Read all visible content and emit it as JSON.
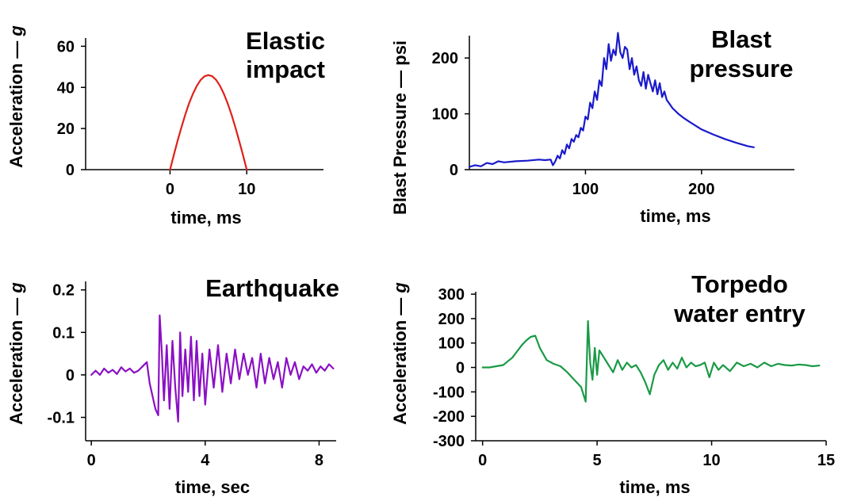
{
  "chart_data": [
    {
      "id": "elastic",
      "type": "line",
      "title_lines": [
        "Elastic",
        "impact"
      ],
      "xlabel": "time, ms",
      "ylabel": "Acceleration —",
      "ylabel_unit": "g",
      "xlim": [
        -11,
        20
      ],
      "ylim": [
        0,
        64
      ],
      "xticks": [
        0,
        10
      ],
      "yticks": [
        0,
        20,
        40,
        60
      ],
      "color": "#e0201b",
      "series": [
        {
          "x": [
            0,
            0.5,
            1,
            1.5,
            2,
            2.5,
            3,
            3.5,
            4,
            4.5,
            5,
            5.5,
            6,
            6.5,
            7,
            7.5,
            8,
            8.5,
            9,
            9.5,
            10
          ],
          "values": [
            0,
            7.2,
            14.2,
            20.8,
            26.9,
            32.4,
            37.0,
            40.8,
            43.7,
            45.4,
            46.0,
            45.4,
            43.7,
            40.8,
            37.0,
            32.4,
            26.9,
            20.8,
            14.2,
            7.2,
            0
          ]
        }
      ]
    },
    {
      "id": "blast",
      "type": "line",
      "title_lines": [
        "Blast",
        "pressure"
      ],
      "xlabel": "time, ms",
      "ylabel": "Blast Pressure — psi",
      "xlim": [
        0,
        280
      ],
      "ylim": [
        0,
        240
      ],
      "xticks": [
        100,
        200
      ],
      "yticks": [
        0,
        100,
        200
      ],
      "color": "#1a1acc",
      "series": [
        {
          "x": [
            0,
            5,
            10,
            15,
            20,
            25,
            30,
            40,
            50,
            60,
            65,
            70,
            72,
            74,
            76,
            78,
            80,
            82,
            84,
            86,
            88,
            90,
            92,
            94,
            96,
            98,
            100,
            102,
            104,
            106,
            108,
            110,
            112,
            114,
            116,
            118,
            120,
            122,
            124,
            126,
            128,
            130,
            132,
            134,
            136,
            138,
            140,
            142,
            144,
            146,
            148,
            150,
            152,
            154,
            156,
            158,
            160,
            162,
            164,
            166,
            168,
            170,
            175,
            180,
            185,
            190,
            200,
            210,
            220,
            230,
            240,
            245
          ],
          "values": [
            5,
            8,
            6,
            12,
            10,
            15,
            13,
            15,
            16,
            18,
            17,
            18,
            8,
            15,
            25,
            20,
            35,
            28,
            45,
            38,
            55,
            50,
            62,
            58,
            75,
            70,
            95,
            90,
            120,
            110,
            140,
            125,
            160,
            150,
            200,
            180,
            225,
            195,
            215,
            205,
            245,
            210,
            200,
            220,
            215,
            180,
            200,
            170,
            185,
            160,
            150,
            175,
            145,
            170,
            155,
            140,
            160,
            135,
            155,
            130,
            140,
            125,
            110,
            100,
            92,
            85,
            72,
            63,
            55,
            48,
            42,
            40
          ]
        }
      ]
    },
    {
      "id": "earthquake",
      "type": "line",
      "title_lines": [
        "Earthquake"
      ],
      "xlabel": "time, sec",
      "ylabel": "Acceleration —",
      "ylabel_unit": "g",
      "xlim": [
        -0.2,
        8.6
      ],
      "ylim": [
        -0.155,
        0.22
      ],
      "xticks": [
        0,
        4,
        8
      ],
      "yticks": [
        -0.1,
        0,
        0.1,
        0.2
      ],
      "color": "#8b0fc4",
      "series": [
        {
          "x": [
            0.0,
            0.15,
            0.3,
            0.45,
            0.6,
            0.75,
            0.9,
            1.05,
            1.2,
            1.35,
            1.5,
            1.65,
            1.8,
            1.95,
            2.05,
            2.15,
            2.25,
            2.35,
            2.4,
            2.48,
            2.55,
            2.65,
            2.75,
            2.85,
            2.95,
            3.05,
            3.12,
            3.2,
            3.3,
            3.4,
            3.5,
            3.6,
            3.7,
            3.8,
            3.9,
            4.0,
            4.15,
            4.3,
            4.45,
            4.6,
            4.75,
            4.9,
            5.05,
            5.2,
            5.35,
            5.5,
            5.65,
            5.8,
            5.95,
            6.1,
            6.25,
            6.4,
            6.55,
            6.7,
            6.85,
            7.0,
            7.15,
            7.3,
            7.45,
            7.6,
            7.75,
            7.9,
            8.05,
            8.2,
            8.35,
            8.5
          ],
          "values": [
            0.0,
            0.01,
            0.0,
            0.015,
            0.005,
            0.012,
            0.002,
            0.018,
            0.008,
            0.015,
            0.005,
            0.01,
            0.02,
            0.03,
            -0.02,
            -0.05,
            -0.08,
            -0.095,
            0.14,
            0.05,
            -0.06,
            0.07,
            -0.08,
            0.08,
            -0.03,
            -0.11,
            0.1,
            -0.05,
            0.06,
            -0.04,
            0.09,
            -0.06,
            0.08,
            -0.05,
            0.05,
            -0.07,
            0.06,
            -0.03,
            0.07,
            -0.04,
            0.05,
            -0.02,
            0.06,
            -0.01,
            0.05,
            0.0,
            0.04,
            -0.03,
            0.05,
            -0.02,
            0.04,
            -0.01,
            0.03,
            -0.03,
            0.04,
            0.0,
            0.03,
            -0.01,
            0.02,
            0.01,
            0.025,
            0.005,
            0.02,
            0.01,
            0.025,
            0.015
          ]
        }
      ]
    },
    {
      "id": "torpedo",
      "type": "line",
      "title_lines": [
        "Torpedo",
        "water entry"
      ],
      "xlabel": "time, ms",
      "ylabel": "Acceleration —",
      "ylabel_unit": "g",
      "xlim": [
        -0.3,
        15
      ],
      "ylim": [
        -300,
        310
      ],
      "xticks": [
        0,
        5,
        10,
        15
      ],
      "yticks": [
        -300,
        -200,
        -100,
        0,
        100,
        200,
        300
      ],
      "color": "#1a9a45",
      "series": [
        {
          "x": [
            0.0,
            0.3,
            0.6,
            0.9,
            1.1,
            1.3,
            1.5,
            1.7,
            1.9,
            2.1,
            2.3,
            2.5,
            2.8,
            3.1,
            3.4,
            3.7,
            4.0,
            4.3,
            4.5,
            4.6,
            4.7,
            4.8,
            4.9,
            5.0,
            5.1,
            5.3,
            5.5,
            5.7,
            5.9,
            6.1,
            6.3,
            6.5,
            6.7,
            6.9,
            7.1,
            7.3,
            7.5,
            7.7,
            7.9,
            8.1,
            8.3,
            8.5,
            8.7,
            8.9,
            9.1,
            9.3,
            9.5,
            9.7,
            9.9,
            10.1,
            10.3,
            10.5,
            10.8,
            11.1,
            11.4,
            11.7,
            12.0,
            12.3,
            12.6,
            12.9,
            13.2,
            13.5,
            13.8,
            14.1,
            14.4,
            14.7
          ],
          "values": [
            0,
            0,
            5,
            10,
            25,
            40,
            65,
            90,
            110,
            125,
            130,
            80,
            30,
            15,
            5,
            -20,
            -50,
            -80,
            -140,
            190,
            20,
            -50,
            80,
            -30,
            70,
            40,
            10,
            -20,
            30,
            -10,
            20,
            0,
            10,
            -20,
            -60,
            -110,
            -30,
            10,
            30,
            -10,
            20,
            -5,
            40,
            0,
            20,
            5,
            10,
            20,
            -40,
            20,
            -10,
            10,
            -15,
            20,
            5,
            15,
            0,
            20,
            5,
            15,
            10,
            8,
            12,
            10,
            5,
            8
          ]
        }
      ]
    }
  ]
}
